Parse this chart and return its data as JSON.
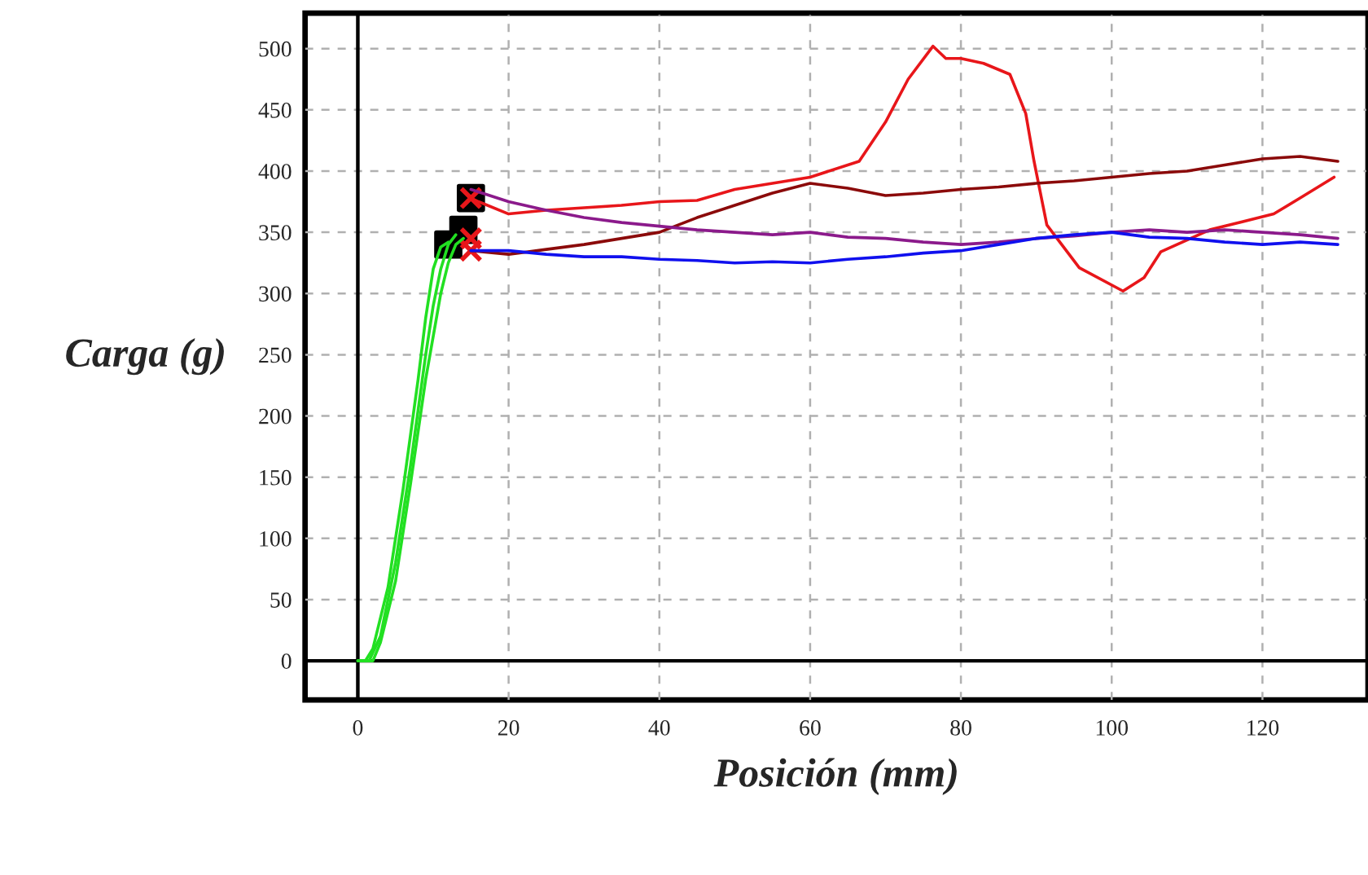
{
  "chart_data": {
    "type": "line",
    "xlabel": "Posición (mm)",
    "ylabel": "Carga (g)",
    "xlim": [
      -7,
      134
    ],
    "ylim": [
      -32,
      529
    ],
    "xticks": [
      0,
      20,
      40,
      60,
      80,
      100,
      120
    ],
    "yticks": [
      0,
      50,
      100,
      150,
      200,
      250,
      300,
      350,
      400,
      450,
      500
    ],
    "grid": true,
    "marker": "none",
    "line_style": "solid",
    "series": [
      {
        "color": "#22e022",
        "x": [
          0,
          1,
          2,
          4,
          6,
          8,
          9,
          10,
          11,
          12
        ],
        "values": [
          0,
          0,
          10,
          60,
          140,
          230,
          280,
          320,
          338,
          342
        ]
      },
      {
        "color": "#22e022",
        "x": [
          0,
          1.5,
          3,
          5,
          7,
          9,
          10,
          11,
          12,
          13
        ],
        "values": [
          0,
          0,
          20,
          80,
          160,
          250,
          290,
          320,
          340,
          348
        ]
      },
      {
        "color": "#22e022",
        "x": [
          0,
          2,
          3,
          5,
          7,
          9,
          11,
          12,
          13,
          14
        ],
        "values": [
          0,
          0,
          15,
          65,
          145,
          230,
          300,
          325,
          340,
          345
        ]
      },
      {
        "color": "#e8161a",
        "x": [
          15,
          16,
          20,
          25,
          30,
          35,
          40,
          45,
          50,
          55,
          60,
          66.5,
          70,
          73,
          76.3,
          78,
          80,
          83,
          86.5,
          88.6,
          89.7,
          91.4,
          95.7,
          101.5,
          104.3,
          106.5,
          113,
          121.5,
          125,
          129.5
        ],
        "values": [
          378,
          375,
          365,
          368,
          370,
          372,
          375,
          376,
          385,
          390,
          395,
          408,
          440,
          475,
          502,
          492,
          492,
          488,
          479,
          447,
          408,
          356,
          321,
          302,
          313,
          334,
          352,
          365,
          378,
          395
        ]
      },
      {
        "color": "#8b0a0a",
        "x": [
          15,
          20,
          25,
          30,
          35,
          40,
          45,
          50,
          55,
          60,
          65,
          70,
          75,
          80,
          85,
          90,
          95,
          100,
          105,
          110,
          115,
          120,
          125,
          130
        ],
        "values": [
          335,
          332,
          336,
          340,
          345,
          350,
          362,
          372,
          382,
          390,
          386,
          380,
          382,
          385,
          387,
          390,
          392,
          395,
          398,
          400,
          405,
          410,
          412,
          408
        ]
      },
      {
        "color": "#8b1a8b",
        "x": [
          15,
          20,
          25,
          30,
          35,
          40,
          45,
          50,
          55,
          60,
          65,
          70,
          75,
          80,
          85,
          90,
          95,
          100,
          105,
          110,
          115,
          120,
          125,
          130
        ],
        "values": [
          385,
          375,
          368,
          362,
          358,
          355,
          352,
          350,
          348,
          350,
          346,
          345,
          342,
          340,
          342,
          345,
          347,
          350,
          352,
          350,
          352,
          350,
          348,
          345
        ]
      },
      {
        "color": "#1010ee",
        "x": [
          15,
          20,
          25,
          30,
          35,
          40,
          45,
          50,
          55,
          60,
          65,
          70,
          75,
          80,
          85,
          90,
          95,
          100,
          105,
          110,
          115,
          120,
          125,
          130
        ],
        "values": [
          335,
          335,
          332,
          330,
          330,
          328,
          327,
          325,
          326,
          325,
          328,
          330,
          333,
          335,
          340,
          345,
          348,
          350,
          346,
          345,
          342,
          340,
          342,
          340
        ]
      },
      {
        "type": "scatter",
        "marker": "square",
        "color": "#000000",
        "x": [
          12,
          14,
          15
        ],
        "values": [
          340,
          352,
          378
        ]
      },
      {
        "type": "scatter",
        "marker": "cross",
        "color": "#e8161a",
        "x": [
          15,
          15,
          15
        ],
        "values": [
          378,
          345,
          335
        ]
      }
    ]
  }
}
